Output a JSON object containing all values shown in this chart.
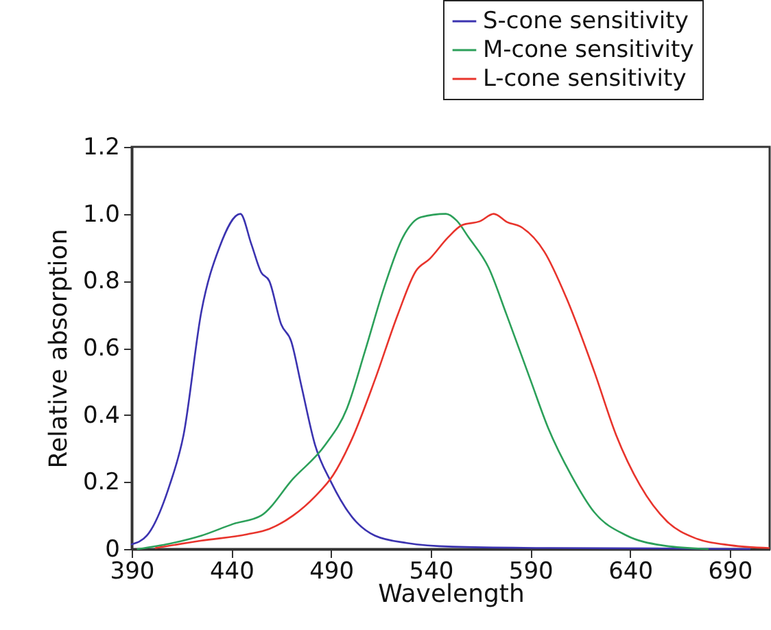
{
  "chart_data": {
    "type": "line",
    "xlabel": "Wavelength",
    "ylabel": "Relative absorption",
    "xlim": [
      390,
      710
    ],
    "xticks": [
      390,
      440,
      490,
      540,
      590,
      640,
      690
    ],
    "ylim": [
      0,
      1.2
    ],
    "yticks": [
      0,
      0.2,
      0.4,
      0.6,
      0.8,
      {
        "value": 1,
        "label": "1.0"
      },
      1.2
    ],
    "legend": "top right",
    "grid": false,
    "line_style": "solid",
    "marker": "none",
    "series": [
      {
        "name": "S-cone sensitivity",
        "color": "#3b33b0",
        "x": [
          390,
          397.6,
          409,
          416,
          425,
          434,
          444.5,
          450,
          455,
          459,
          465,
          470,
          475,
          482,
          490,
          500.6,
          512,
          528,
          551,
          600,
          650,
          700
        ],
        "values": [
          0.014,
          0.04,
          0.19,
          0.34,
          0.71,
          0.9,
          1.0,
          0.91,
          0.825,
          0.8,
          0.67,
          0.62,
          0.49,
          0.31,
          0.2,
          0.095,
          0.04,
          0.018,
          0.007,
          0.003,
          0.002,
          0
        ]
      },
      {
        "name": "M-cone sensitivity",
        "color": "#2ca05a",
        "x": [
          393,
          409,
          425,
          441,
          455,
          471,
          487,
          498,
          507,
          516.6,
          526,
          535,
          547.6,
          553,
          559,
          569,
          578,
          590,
          599,
          610.5,
          622,
          638,
          656,
          679
        ],
        "values": [
          0,
          0.016,
          0.04,
          0.075,
          0.1,
          0.21,
          0.31,
          0.42,
          0.59,
          0.78,
          0.93,
          0.99,
          1.0,
          0.98,
          0.93,
          0.84,
          0.7,
          0.505,
          0.36,
          0.22,
          0.11,
          0.041,
          0.011,
          0
        ]
      },
      {
        "name": "L-cone sensitivity",
        "color": "#e8342c",
        "x": [
          402,
          425,
          448,
          459,
          471,
          482,
          491,
          500.6,
          512,
          523.5,
          532.6,
          539.5,
          548.7,
          555.6,
          564.7,
          571.6,
          578.5,
          585,
          597,
          608,
          622,
          633,
          645,
          658.6,
          672,
          690.6,
          709.6
        ],
        "values": [
          0.003,
          0.025,
          0.044,
          0.06,
          0.1,
          0.157,
          0.22,
          0.33,
          0.505,
          0.7,
          0.83,
          0.866,
          0.93,
          0.966,
          0.978,
          1.0,
          0.975,
          0.962,
          0.887,
          0.75,
          0.53,
          0.34,
          0.19,
          0.082,
          0.034,
          0.011,
          0.003
        ]
      }
    ]
  }
}
